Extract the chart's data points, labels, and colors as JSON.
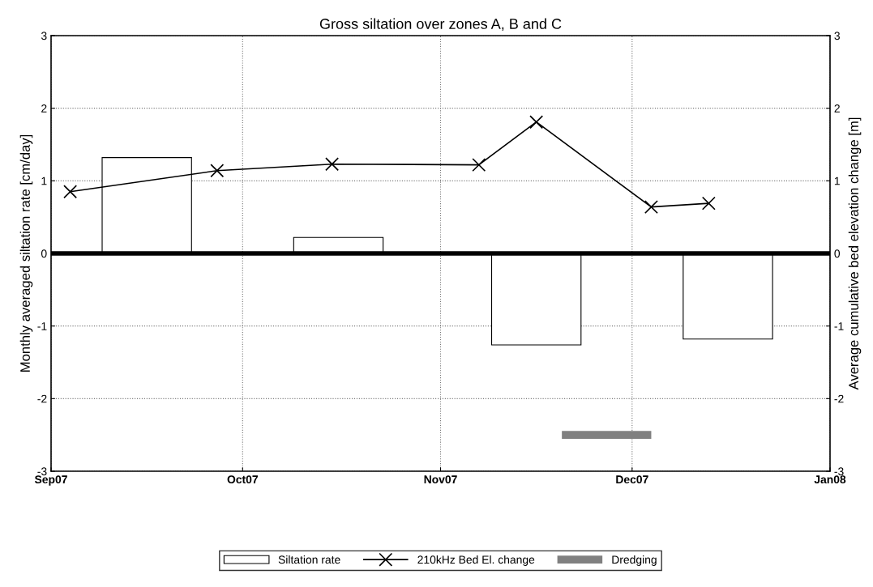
{
  "chart_data": {
    "type": "bar",
    "title": "Gross siltation over zones A, B and C",
    "ylabel": "Monthly averaged siltation rate [cm/day]",
    "y2label": "Average cumulative bed elevation change [m]",
    "xlim": [
      "2007-09-01",
      "2008-01-01"
    ],
    "xticks": [
      {
        "value": "2007-09-01",
        "label": "Sep07"
      },
      {
        "value": "2007-10-01",
        "label": "Oct07"
      },
      {
        "value": "2007-11-01",
        "label": "Nov07"
      },
      {
        "value": "2007-12-01",
        "label": "Dec07"
      },
      {
        "value": "2008-01-01",
        "label": "Jan08"
      }
    ],
    "ylim": [
      -3,
      3
    ],
    "yticks": [
      -3,
      -2,
      -1,
      0,
      1,
      2,
      3
    ],
    "y2lim": [
      -3,
      3
    ],
    "y2ticks": [
      -3,
      -2,
      -1,
      0,
      1,
      2,
      3
    ],
    "series": [
      {
        "name": "Siltation rate",
        "color": "#ffffff",
        "x": [
          "2007-09-16",
          "2007-10-16",
          "2007-11-16",
          "2007-12-16"
        ],
        "values": [
          1.32,
          0.22,
          -1.26,
          -1.18
        ]
      },
      {
        "name": "210kHz Bed El. change",
        "type": "line",
        "axis": "y2",
        "color": "#000000",
        "marker": "cross",
        "x": [
          "2007-09-04",
          "2007-09-27",
          "2007-10-15",
          "2007-11-07",
          "2007-11-16",
          "2007-12-04",
          "2007-12-13"
        ],
        "values": [
          0.85,
          1.14,
          1.23,
          1.22,
          1.81,
          0.64,
          0.69
        ]
      },
      {
        "name": "Dredging",
        "type": "line",
        "color": "#808080",
        "marker": "none",
        "x": [
          "2007-11-20",
          "2007-12-04"
        ],
        "values": [
          -2.5,
          -2.5
        ]
      }
    ],
    "ref_lines": [
      {
        "axis": "y",
        "value": 0,
        "color": "#000000"
      }
    ],
    "grid": true,
    "legend": "bottom"
  }
}
